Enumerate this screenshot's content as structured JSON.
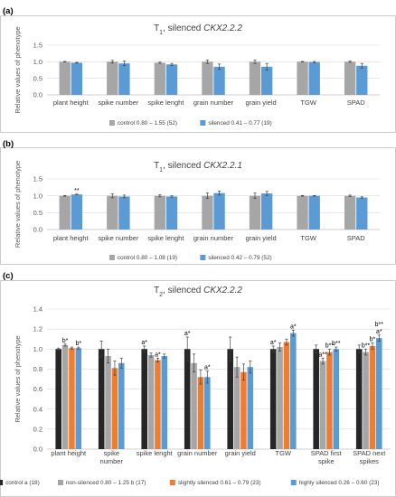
{
  "chart_data": [
    {
      "panel_label": "(a)",
      "type": "bar",
      "title_prefix": "T",
      "title_sub": "1",
      "title_rest": ", silenced ",
      "title_gene": "CKX2.2.2",
      "ylabel": "Relative values of phenotype",
      "ylim": [
        0,
        1.5
      ],
      "yticks": [
        "0.0",
        "0.5",
        "1.0",
        "1.5"
      ],
      "categories": [
        "plant height",
        "spike number",
        "spike lenght",
        "grain number",
        "grain yield",
        "TGW",
        "SPAD"
      ],
      "series": [
        {
          "name": "control 0.80 – 1.55 (52)",
          "color": "#a6a6a6",
          "values": [
            1.0,
            1.0,
            0.97,
            1.0,
            1.0,
            1.0,
            1.0
          ],
          "err": [
            0.01,
            0.04,
            0.02,
            0.05,
            0.05,
            0.01,
            0.02
          ]
        },
        {
          "name": "silenced 0.41 – 0.77 (19)",
          "color": "#5b9bd5",
          "values": [
            0.97,
            0.95,
            0.92,
            0.85,
            0.85,
            0.99,
            0.88
          ],
          "err": [
            0.01,
            0.07,
            0.03,
            0.08,
            0.1,
            0.02,
            0.07
          ]
        }
      ],
      "annotations": []
    },
    {
      "panel_label": "(b)",
      "type": "bar",
      "title_prefix": "T",
      "title_sub": "1",
      "title_rest": ", silenced ",
      "title_gene": "CKX2.2.1",
      "ylabel": "Relative values of phenotype",
      "ylim": [
        0,
        1.5
      ],
      "yticks": [
        "0.0",
        "0.5",
        "1.0",
        "1.5"
      ],
      "categories": [
        "plant height",
        "spike number",
        "spike lenght",
        "grain number",
        "grain yield",
        "TGW",
        "SPAD"
      ],
      "series": [
        {
          "name": "control 0.80 – 1.08 (19)",
          "color": "#a6a6a6",
          "values": [
            1.0,
            1.0,
            1.0,
            1.0,
            1.0,
            1.0,
            1.0
          ],
          "err": [
            0.01,
            0.06,
            0.03,
            0.08,
            0.08,
            0.01,
            0.02
          ]
        },
        {
          "name": "silenced 0.42 – 0.79 (52)",
          "color": "#5b9bd5",
          "values": [
            1.04,
            0.98,
            0.98,
            1.08,
            1.07,
            1.0,
            0.95
          ],
          "err": [
            0.01,
            0.04,
            0.02,
            0.06,
            0.06,
            0.01,
            0.02
          ]
        }
      ],
      "annotations": [
        {
          "category": 0,
          "series": 1,
          "text": "**"
        }
      ]
    },
    {
      "panel_label": "(c)",
      "type": "bar",
      "title_prefix": "T",
      "title_sub": "2",
      "title_rest": ", silenced ",
      "title_gene": "CKX2.2.2",
      "ylabel": "Relative values of phenotype",
      "ylim": [
        0,
        1.4
      ],
      "yticks": [
        "0.0",
        "0.2",
        "0.4",
        "0.6",
        "0.8",
        "1.0",
        "1.2",
        "1.4"
      ],
      "categories": [
        "plant height",
        "spike number",
        "spike lenght",
        "grain number",
        "grain yield",
        "TGW",
        "SPAD first spike",
        "SPAD next spikes"
      ],
      "series": [
        {
          "name": "control a (18)",
          "color": "#262626",
          "values": [
            1.0,
            1.0,
            1.0,
            1.0,
            1.0,
            1.0,
            1.0,
            1.0
          ],
          "err": [
            0.01,
            0.08,
            0.03,
            0.12,
            0.12,
            0.03,
            0.04,
            0.04
          ]
        },
        {
          "name": "non-silenced 0.80 – 1.25 b (17)",
          "color": "#a6a6a6",
          "values": [
            1.04,
            0.93,
            0.94,
            0.86,
            0.82,
            1.02,
            0.88,
            0.97
          ],
          "err": [
            0.01,
            0.07,
            0.02,
            0.09,
            0.1,
            0.04,
            0.03,
            0.03
          ]
        },
        {
          "name": "slightly silenced 0.61 – 0.79 (23)",
          "color": "#ed7d31",
          "values": [
            1.01,
            0.81,
            0.89,
            0.72,
            0.77,
            1.07,
            0.97,
            1.03
          ],
          "err": [
            0.01,
            0.07,
            0.02,
            0.07,
            0.08,
            0.03,
            0.03,
            0.03
          ]
        },
        {
          "name": "highly silenced 0.26 – 0.60 (23)",
          "color": "#5b9bd5",
          "values": [
            1.01,
            0.86,
            0.93,
            0.72,
            0.82,
            1.16,
            1.0,
            1.11
          ],
          "err": [
            0.01,
            0.05,
            0.02,
            0.06,
            0.06,
            0.03,
            0.02,
            0.03
          ]
        }
      ],
      "annotations": [
        {
          "category": 0,
          "series": 1,
          "text": "b*"
        },
        {
          "category": 0,
          "series": 3,
          "text": "b*"
        },
        {
          "category": 2,
          "series": 0,
          "text": "a*"
        },
        {
          "category": 2,
          "series": 2,
          "text": "a*"
        },
        {
          "category": 3,
          "series": 0,
          "text": "a*"
        },
        {
          "category": 3,
          "series": 3,
          "text": "a*"
        },
        {
          "category": 5,
          "series": 0,
          "text": "a*"
        },
        {
          "category": 5,
          "series": 3,
          "text": "a*"
        },
        {
          "category": 6,
          "series": 1,
          "text": "a**"
        },
        {
          "category": 6,
          "series": 2,
          "text": "b**"
        },
        {
          "category": 6,
          "series": 3,
          "text": "b**"
        },
        {
          "category": 7,
          "series": 1,
          "text": "b**"
        },
        {
          "category": 7,
          "series": 2,
          "text": "b*"
        },
        {
          "category": 7,
          "series": 3,
          "text": "a*"
        },
        {
          "category": 7,
          "series": 3,
          "text": "b**"
        }
      ]
    }
  ]
}
